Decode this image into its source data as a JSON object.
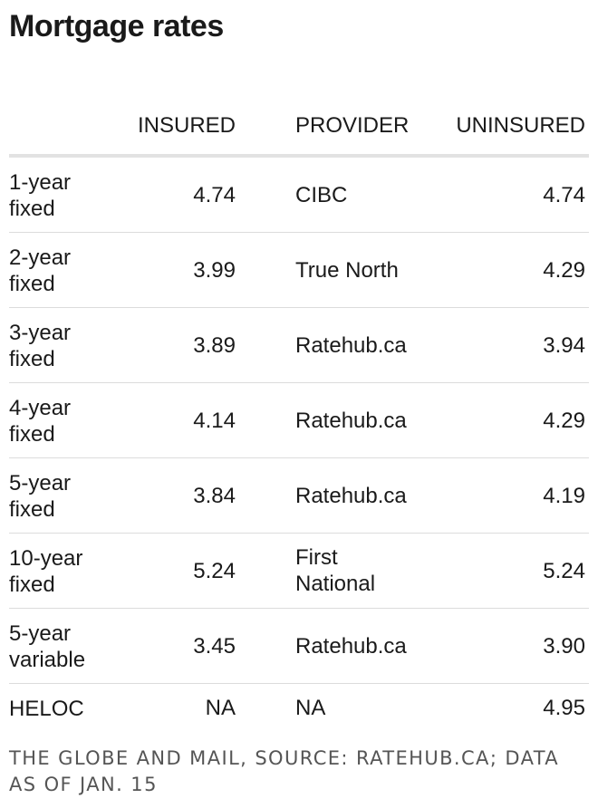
{
  "title": "Mortgage rates",
  "chart_data": {
    "type": "table",
    "title": "Mortgage rates",
    "columns": [
      "",
      "INSURED",
      "PROVIDER",
      "UNINSURED"
    ],
    "rows": [
      {
        "term": "1-year fixed",
        "insured": "4.74",
        "provider": "CIBC",
        "uninsured": "4.74"
      },
      {
        "term": "2-year fixed",
        "insured": "3.99",
        "provider": "True North",
        "uninsured": "4.29"
      },
      {
        "term": "3-year fixed",
        "insured": "3.89",
        "provider": "Ratehub.ca",
        "uninsured": "3.94"
      },
      {
        "term": "4-year fixed",
        "insured": "4.14",
        "provider": "Ratehub.ca",
        "uninsured": "4.29"
      },
      {
        "term": "5-year fixed",
        "insured": "3.84",
        "provider": "Ratehub.ca",
        "uninsured": "4.19"
      },
      {
        "term": "10-year fixed",
        "insured": "5.24",
        "provider": "First National",
        "uninsured": "5.24"
      },
      {
        "term": "5-year variable",
        "insured": "3.45",
        "provider": "Ratehub.ca",
        "uninsured": "3.90"
      },
      {
        "term": "HELOC",
        "insured": "NA",
        "provider": "NA",
        "uninsured": "4.95"
      }
    ]
  },
  "source": "THE GLOBE AND MAIL, SOURCE: RATEHUB.CA; DATA AS OF JAN. 15",
  "colors": {
    "text": "#1a1a1a",
    "source_text": "#555555",
    "header_rule": "#e2e2e2",
    "row_rule": "#dcdcdc"
  }
}
